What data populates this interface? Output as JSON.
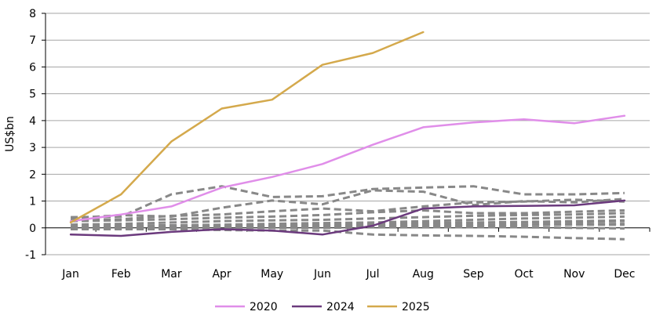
{
  "chart_data": {
    "type": "line",
    "categories": [
      "Jan",
      "Feb",
      "Mar",
      "Apr",
      "May",
      "Jun",
      "Jul",
      "Aug",
      "Sep",
      "Oct",
      "Nov",
      "Dec"
    ],
    "ylabel": "US$bn",
    "xlabel": "",
    "ylim": [
      -1,
      8
    ],
    "yticks": [
      -1,
      0,
      1,
      2,
      3,
      4,
      5,
      6,
      7,
      8
    ],
    "grid": true,
    "legend_position": "bottom",
    "series": [
      {
        "name": "2020",
        "color": "#e08ee9",
        "style": "solid",
        "values": [
          0.25,
          0.5,
          0.8,
          1.5,
          1.9,
          2.38,
          3.1,
          3.75,
          3.93,
          4.05,
          3.9,
          4.18
        ]
      },
      {
        "name": "2024",
        "color": "#6b3a7d",
        "style": "solid",
        "values": [
          -0.25,
          -0.3,
          -0.15,
          -0.05,
          -0.1,
          -0.25,
          0.08,
          0.72,
          0.8,
          0.82,
          0.84,
          1.02
        ]
      },
      {
        "name": "2025",
        "color": "#d4a94c",
        "style": "solid",
        "values": [
          0.2,
          1.25,
          3.22,
          4.45,
          4.78,
          6.08,
          6.52,
          7.3,
          null,
          null,
          null,
          null
        ]
      }
    ],
    "background_series": [
      {
        "color": "#888888",
        "style": "dashed",
        "values": [
          0.4,
          0.42,
          1.25,
          1.55,
          1.15,
          1.18,
          1.45,
          1.5,
          1.55,
          1.25,
          1.25,
          1.3
        ]
      },
      {
        "color": "#888888",
        "style": "dashed",
        "values": [
          0.35,
          0.48,
          0.42,
          0.75,
          1.02,
          0.88,
          1.4,
          1.35,
          0.85,
          1.0,
          0.95,
          1.08
        ]
      },
      {
        "color": "#888888",
        "style": "dashed",
        "values": [
          0.3,
          0.32,
          0.45,
          0.5,
          0.62,
          0.72,
          0.62,
          0.8,
          0.95,
          0.98,
          1.05,
          0.98
        ]
      },
      {
        "color": "#888888",
        "style": "dashed",
        "values": [
          0.25,
          0.28,
          0.32,
          0.38,
          0.42,
          0.48,
          0.58,
          0.65,
          0.55,
          0.55,
          0.6,
          0.65
        ]
      },
      {
        "color": "#888888",
        "style": "dashed",
        "values": [
          0.12,
          0.15,
          0.2,
          0.25,
          0.28,
          0.3,
          0.35,
          0.4,
          0.45,
          0.48,
          0.5,
          0.55
        ]
      },
      {
        "color": "#888888",
        "style": "dashed",
        "values": [
          0.05,
          0.08,
          0.1,
          0.12,
          0.15,
          0.18,
          0.2,
          0.25,
          0.3,
          0.35,
          0.38,
          0.42
        ]
      },
      {
        "color": "#888888",
        "style": "dashed",
        "values": [
          0.02,
          0.03,
          0.05,
          0.06,
          0.08,
          0.1,
          0.12,
          0.15,
          0.18,
          0.2,
          0.22,
          0.25
        ]
      },
      {
        "color": "#888888",
        "style": "dashed",
        "values": [
          0.0,
          0.0,
          0.02,
          0.03,
          0.04,
          0.05,
          0.06,
          0.08,
          0.1,
          0.12,
          0.14,
          0.15
        ]
      },
      {
        "color": "#888888",
        "style": "dashed",
        "values": [
          -0.02,
          0.0,
          0.0,
          0.0,
          0.02,
          0.03,
          0.05,
          0.06,
          0.08,
          0.1,
          0.12,
          0.12
        ]
      },
      {
        "color": "#888888",
        "style": "dashed",
        "values": [
          0.0,
          -0.02,
          -0.02,
          0.0,
          0.0,
          0.0,
          0.02,
          0.02,
          0.03,
          0.02,
          0.0,
          -0.02
        ]
      },
      {
        "color": "#888888",
        "style": "dashed",
        "values": [
          -0.05,
          -0.05,
          -0.05,
          -0.08,
          -0.1,
          -0.1,
          -0.25,
          -0.28,
          -0.3,
          -0.33,
          -0.38,
          -0.42
        ]
      },
      {
        "color": "#888888",
        "style": "dashed",
        "values": [
          0.0,
          0.02,
          0.05,
          0.08,
          0.1,
          0.12,
          0.15,
          0.18,
          0.2,
          0.22,
          0.25,
          0.28
        ]
      }
    ]
  }
}
